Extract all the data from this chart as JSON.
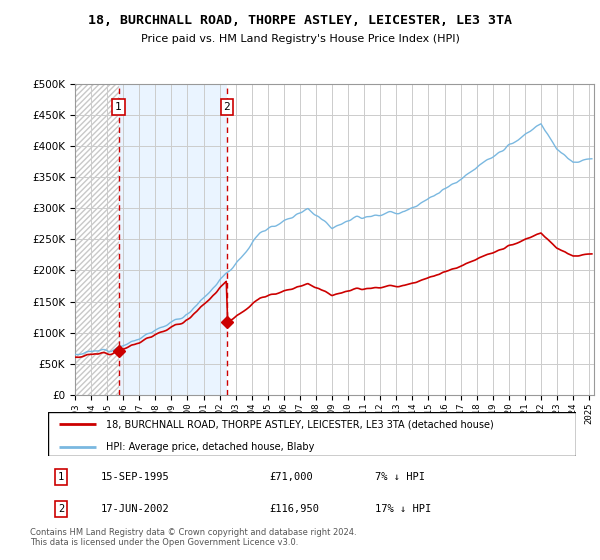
{
  "title": "18, BURCHNALL ROAD, THORPE ASTLEY, LEICESTER, LE3 3TA",
  "subtitle": "Price paid vs. HM Land Registry's House Price Index (HPI)",
  "legend_line1": "18, BURCHNALL ROAD, THORPE ASTLEY, LEICESTER, LE3 3TA (detached house)",
  "legend_line2": "HPI: Average price, detached house, Blaby",
  "sale1_date": "15-SEP-1995",
  "sale1_price": "£71,000",
  "sale1_hpi": "7% ↓ HPI",
  "sale2_date": "17-JUN-2002",
  "sale2_price": "£116,950",
  "sale2_hpi": "17% ↓ HPI",
  "footer": "Contains HM Land Registry data © Crown copyright and database right 2024.\nThis data is licensed under the Open Government Licence v3.0.",
  "hpi_color": "#7ab8e0",
  "price_color": "#cc0000",
  "vline_color": "#cc0000",
  "hatch_color": "#c8c8c8",
  "shade_color": "#ddeeff",
  "background_color": "#ffffff",
  "grid_color": "#cccccc",
  "ylim": [
    0,
    500000
  ],
  "yticks": [
    0,
    50000,
    100000,
    150000,
    200000,
    250000,
    300000,
    350000,
    400000,
    450000,
    500000
  ],
  "sale1_year_f": 1995.708,
  "sale2_year_f": 2002.458,
  "sale1_price_v": 71000,
  "sale2_price_v": 116950
}
